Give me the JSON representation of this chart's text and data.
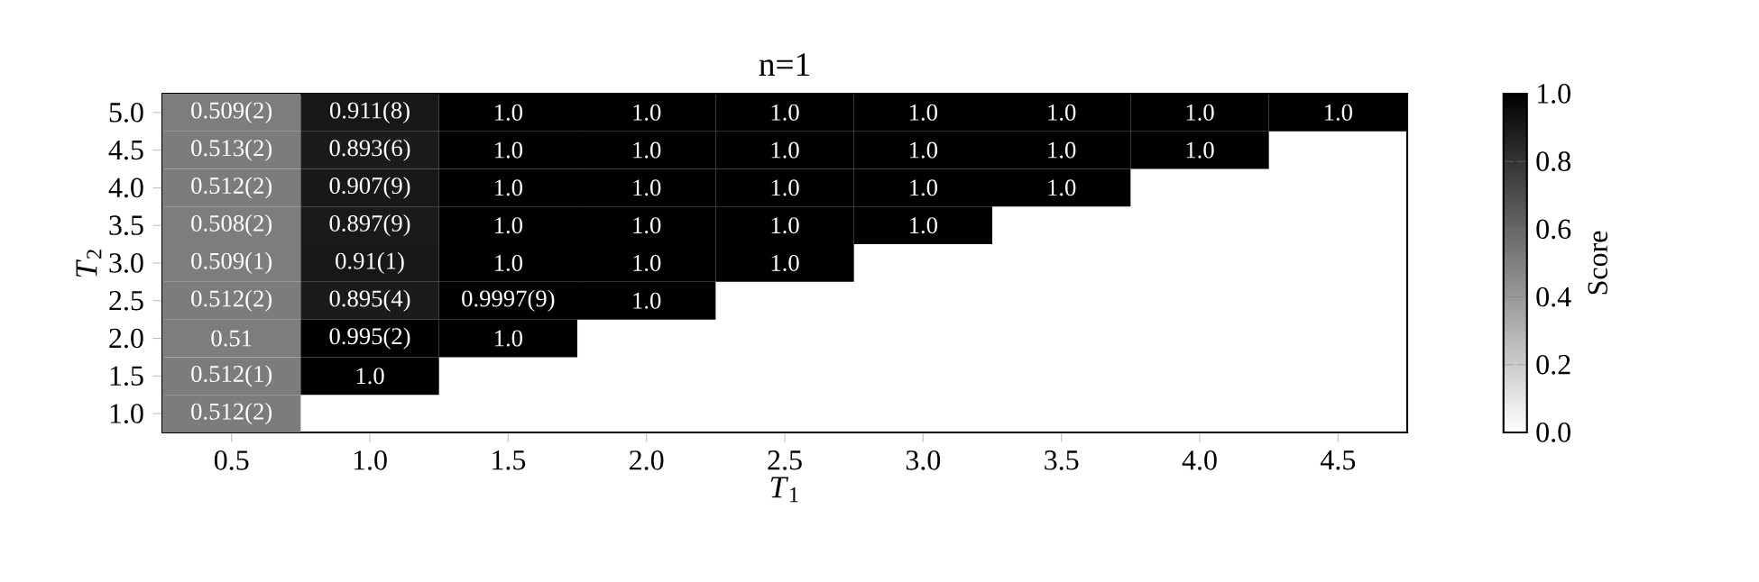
{
  "chart_data": {
    "type": "heatmap",
    "title": "n=1",
    "xlabel": "*T*$_{1}$",
    "ylabel": "*T*$_{2}$",
    "clabel": "Score",
    "categories": [
      "0.5",
      "1.0",
      "1.5",
      "2.0",
      "2.5",
      "3.0",
      "3.5",
      "4.0",
      "4.5"
    ],
    "y_categories": [
      "5.0",
      "4.5",
      "4.0",
      "3.5",
      "3.0",
      "2.5",
      "2.0",
      "1.5",
      "1.0"
    ],
    "cells": [
      [
        0.509,
        0.911,
        1.0,
        1.0,
        1.0,
        1.0,
        1.0,
        1.0,
        1.0
      ],
      [
        0.513,
        0.893,
        1.0,
        1.0,
        1.0,
        1.0,
        1.0,
        1.0,
        null
      ],
      [
        0.512,
        0.907,
        1.0,
        1.0,
        1.0,
        1.0,
        1.0,
        null,
        null
      ],
      [
        0.508,
        0.897,
        1.0,
        1.0,
        1.0,
        1.0,
        null,
        null,
        null
      ],
      [
        0.509,
        0.91,
        1.0,
        1.0,
        1.0,
        null,
        null,
        null,
        null
      ],
      [
        0.512,
        0.895,
        0.9997,
        1.0,
        null,
        null,
        null,
        null,
        null
      ],
      [
        0.51,
        0.995,
        1.0,
        null,
        null,
        null,
        null,
        null,
        null
      ],
      [
        0.512,
        1.0,
        null,
        null,
        null,
        null,
        null,
        null,
        null
      ],
      [
        0.512,
        null,
        null,
        null,
        null,
        null,
        null,
        null,
        null
      ]
    ],
    "cell_labels": [
      [
        "0.509(2)",
        "0.911(8)",
        "1.0",
        "1.0",
        "1.0",
        "1.0",
        "1.0",
        "1.0",
        "1.0"
      ],
      [
        "0.513(2)",
        "0.893(6)",
        "1.0",
        "1.0",
        "1.0",
        "1.0",
        "1.0",
        "1.0",
        null
      ],
      [
        "0.512(2)",
        "0.907(9)",
        "1.0",
        "1.0",
        "1.0",
        "1.0",
        "1.0",
        null,
        null
      ],
      [
        "0.508(2)",
        "0.897(9)",
        "1.0",
        "1.0",
        "1.0",
        "1.0",
        null,
        null,
        null
      ],
      [
        "0.509(1)",
        "0.91(1)",
        "1.0",
        "1.0",
        "1.0",
        null,
        null,
        null,
        null
      ],
      [
        "0.512(2)",
        "0.895(4)",
        "0.9997(9)",
        "1.0",
        null,
        null,
        null,
        null,
        null
      ],
      [
        "0.51",
        "0.995(2)",
        "1.0",
        null,
        null,
        null,
        null,
        null,
        null
      ],
      [
        "0.512(1)",
        "1.0",
        null,
        null,
        null,
        null,
        null,
        null,
        null
      ],
      [
        "0.512(2)",
        null,
        null,
        null,
        null,
        null,
        null,
        null,
        null
      ]
    ],
    "clim": [
      0,
      1
    ],
    "cticks": [
      {
        "value": 0,
        "label": "0.0"
      },
      {
        "value": 0.2,
        "label": "0.2"
      },
      {
        "value": 0.4,
        "label": "0.4"
      },
      {
        "value": 0.6,
        "label": "0.6"
      },
      {
        "value": 0.8,
        "label": "0.8"
      },
      {
        "value": 1,
        "label": "1.0"
      }
    ]
  }
}
